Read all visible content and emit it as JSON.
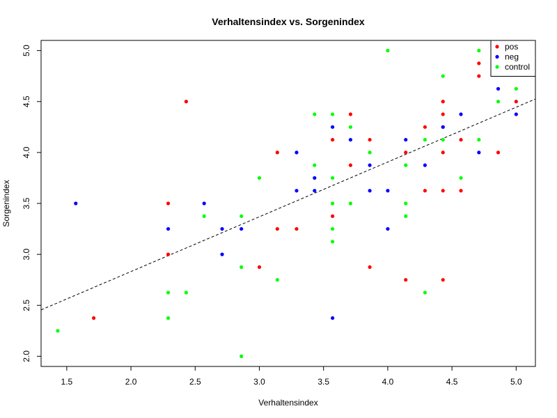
{
  "chart_data": {
    "type": "scatter",
    "title": "Verhaltensindex vs. Sorgenindex",
    "xlabel": "Verhaltensindex",
    "ylabel": "Sorgenindex",
    "xlim": [
      1.3,
      5.15
    ],
    "ylim": [
      1.9,
      5.1
    ],
    "xticks": [
      1.5,
      2.0,
      2.5,
      3.0,
      3.5,
      4.0,
      4.5,
      5.0
    ],
    "xtick_labels": [
      "1.5",
      "2.0",
      "2.5",
      "3.0",
      "3.5",
      "4.0",
      "4.5",
      "5.0"
    ],
    "yticks": [
      2.0,
      2.5,
      3.0,
      3.5,
      4.0,
      4.5,
      5.0
    ],
    "ytick_labels": [
      "2.0",
      "2.5",
      "3.0",
      "3.5",
      "4.0",
      "4.5",
      "5.0"
    ],
    "grid": false,
    "legend_position": "top-right",
    "regression_line": {
      "style": "dashed",
      "color": "#000000",
      "points": [
        [
          1.3,
          2.455
        ],
        [
          5.15,
          4.525
        ]
      ]
    },
    "series": [
      {
        "name": "pos",
        "color": "#ff0000",
        "points": [
          [
            1.71,
            2.375
          ],
          [
            2.29,
            3.5
          ],
          [
            2.29,
            3.0
          ],
          [
            2.43,
            4.5
          ],
          [
            3.0,
            2.875
          ],
          [
            3.14,
            4.0
          ],
          [
            3.14,
            3.25
          ],
          [
            3.29,
            3.25
          ],
          [
            3.57,
            4.125
          ],
          [
            3.57,
            3.375
          ],
          [
            3.71,
            4.375
          ],
          [
            3.71,
            3.875
          ],
          [
            3.86,
            4.125
          ],
          [
            3.86,
            2.875
          ],
          [
            4.14,
            4.0
          ],
          [
            4.14,
            2.75
          ],
          [
            4.29,
            4.25
          ],
          [
            4.29,
            3.625
          ],
          [
            4.43,
            4.5
          ],
          [
            4.43,
            4.375
          ],
          [
            4.43,
            4.25
          ],
          [
            4.43,
            4.0
          ],
          [
            4.43,
            3.625
          ],
          [
            4.43,
            2.75
          ],
          [
            4.57,
            4.125
          ],
          [
            4.57,
            3.625
          ],
          [
            4.71,
            4.875
          ],
          [
            4.71,
            4.75
          ],
          [
            4.86,
            4.0
          ],
          [
            5.0,
            4.5
          ]
        ]
      },
      {
        "name": "neg",
        "color": "#0000ff",
        "points": [
          [
            1.57,
            3.5
          ],
          [
            2.29,
            3.25
          ],
          [
            2.57,
            3.5
          ],
          [
            2.71,
            3.25
          ],
          [
            2.71,
            3.0
          ],
          [
            2.86,
            3.25
          ],
          [
            3.29,
            4.0
          ],
          [
            3.29,
            3.625
          ],
          [
            3.43,
            3.75
          ],
          [
            3.43,
            3.625
          ],
          [
            3.57,
            4.25
          ],
          [
            3.57,
            2.375
          ],
          [
            3.71,
            4.125
          ],
          [
            3.86,
            3.875
          ],
          [
            3.86,
            3.625
          ],
          [
            4.0,
            3.625
          ],
          [
            4.0,
            3.25
          ],
          [
            4.14,
            4.125
          ],
          [
            4.29,
            3.875
          ],
          [
            4.43,
            4.25
          ],
          [
            4.57,
            4.375
          ],
          [
            4.71,
            4.0
          ],
          [
            4.86,
            4.625
          ],
          [
            5.0,
            4.375
          ]
        ]
      },
      {
        "name": "control",
        "color": "#00ff00",
        "points": [
          [
            1.43,
            2.25
          ],
          [
            2.29,
            2.625
          ],
          [
            2.29,
            2.375
          ],
          [
            2.43,
            2.625
          ],
          [
            2.57,
            3.375
          ],
          [
            2.86,
            3.375
          ],
          [
            2.86,
            2.875
          ],
          [
            2.86,
            2.0
          ],
          [
            3.0,
            3.75
          ],
          [
            3.14,
            2.75
          ],
          [
            3.43,
            4.375
          ],
          [
            3.43,
            3.875
          ],
          [
            3.57,
            4.375
          ],
          [
            3.57,
            3.75
          ],
          [
            3.57,
            3.5
          ],
          [
            3.57,
            3.25
          ],
          [
            3.57,
            3.125
          ],
          [
            3.71,
            4.25
          ],
          [
            3.71,
            3.5
          ],
          [
            3.86,
            4.0
          ],
          [
            4.0,
            5.0
          ],
          [
            4.14,
            3.875
          ],
          [
            4.14,
            3.5
          ],
          [
            4.14,
            3.375
          ],
          [
            4.29,
            4.125
          ],
          [
            4.29,
            2.625
          ],
          [
            4.43,
            4.75
          ],
          [
            4.43,
            4.125
          ],
          [
            4.57,
            3.75
          ],
          [
            4.71,
            5.0
          ],
          [
            4.71,
            4.125
          ],
          [
            4.86,
            4.5
          ],
          [
            5.0,
            4.625
          ]
        ]
      }
    ]
  }
}
